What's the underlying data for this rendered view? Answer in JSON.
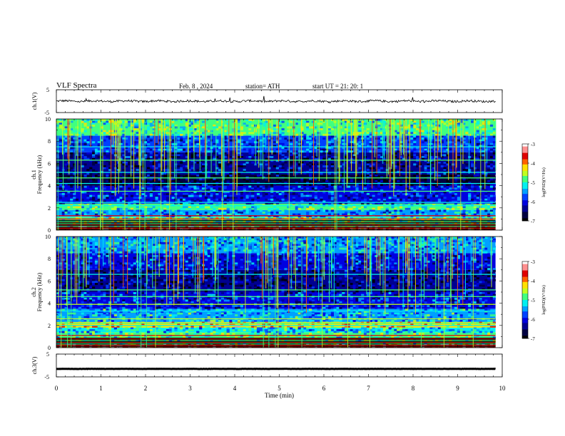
{
  "header": {
    "title": "VLF  Spectra",
    "date": "Feb. 8  , 2024",
    "station": "station= ATH",
    "start": "start  UT  =    21: 20: 1"
  },
  "colormap": [
    "#000000",
    "#000040",
    "#000090",
    "#0000e0",
    "#0040ff",
    "#00a0ff",
    "#00f0f0",
    "#40ff80",
    "#c0ff20",
    "#ffe000",
    "#ff6000",
    "#e00000",
    "#ff9090",
    "#ffffff"
  ],
  "chart_data": [
    {
      "type": "line",
      "name": "ch.1 waveform",
      "ylabel": "ch.1(V)",
      "ylim": [
        -5,
        5
      ],
      "yticks": [
        "5",
        "-5"
      ],
      "xlim": [
        0,
        10
      ],
      "baseline": 0,
      "amplitude_typical": 0.8
    },
    {
      "type": "heatmap",
      "name": "ch.1 spectrogram",
      "ylabel": "ch.1\nFrequency  (kHz)",
      "xlim": [
        0,
        10
      ],
      "ylim": [
        0,
        10
      ],
      "data_xmax": 9.85,
      "yticks": [
        "10",
        "8",
        "6",
        "4",
        "2",
        "0"
      ],
      "colorbar": {
        "label": "log(PSD)(V²/Hz)",
        "range": [
          -7,
          -3
        ],
        "ticks": [
          "-3",
          "-4",
          "-5",
          "-6",
          "-7"
        ]
      },
      "bands": [
        {
          "f": [
            0,
            0.3
          ],
          "level": -3.5
        },
        {
          "f": [
            0.3,
            1.2
          ],
          "level": -4.8
        },
        {
          "f": [
            1.2,
            1.8
          ],
          "level": -5.6
        },
        {
          "f": [
            1.8,
            2.4
          ],
          "level": -4.9
        },
        {
          "f": [
            2.4,
            4.0
          ],
          "level": -6.0
        },
        {
          "f": [
            4.0,
            5.0
          ],
          "level": -6.6
        },
        {
          "f": [
            5.0,
            7.0
          ],
          "level": -6.3
        },
        {
          "f": [
            7.0,
            8.5
          ],
          "level": -5.8
        },
        {
          "f": [
            8.5,
            10.0
          ],
          "level": -5.0
        }
      ],
      "strong_lines_khz": [
        0.2,
        0.45,
        0.7,
        1.0,
        1.3,
        2.2,
        2.5,
        3.5,
        4.2,
        4.7,
        5.2,
        6.3,
        7.5
      ]
    },
    {
      "type": "heatmap",
      "name": "ch.2 spectrogram",
      "ylabel": "ch.2\nFrequency  (kHz)",
      "xlim": [
        0,
        10
      ],
      "ylim": [
        0,
        10
      ],
      "data_xmax": 9.85,
      "yticks": [
        "10",
        "8",
        "6",
        "4",
        "2",
        "0"
      ],
      "colorbar": {
        "label": "log(PSD)(V²/Hz)",
        "range": [
          -7,
          -3
        ],
        "ticks": [
          "-3",
          "-4",
          "-5",
          "-6",
          "-7"
        ]
      },
      "bands": [
        {
          "f": [
            0,
            0.3
          ],
          "level": -3.5
        },
        {
          "f": [
            0.3,
            1.4
          ],
          "level": -4.9
        },
        {
          "f": [
            1.4,
            1.8
          ],
          "level": -5.3
        },
        {
          "f": [
            1.8,
            2.3
          ],
          "level": -4.2
        },
        {
          "f": [
            2.3,
            3.5
          ],
          "level": -5.4
        },
        {
          "f": [
            3.5,
            5.0
          ],
          "level": -6.0
        },
        {
          "f": [
            5.0,
            7.0
          ],
          "level": -6.4
        },
        {
          "f": [
            7.0,
            8.5
          ],
          "level": -6.0
        },
        {
          "f": [
            8.5,
            10.0
          ],
          "level": -5.5
        }
      ],
      "strong_lines_khz": [
        0.2,
        0.5,
        0.8,
        1.1,
        2.0,
        2.2,
        2.6,
        3.3,
        3.9,
        4.6,
        5.2,
        6.6
      ]
    },
    {
      "type": "line",
      "name": "ch.3 waveform",
      "ylabel": "ch.3(V)",
      "ylim": [
        -5,
        5
      ],
      "yticks": [
        "5",
        "-5"
      ],
      "xlim": [
        0,
        10
      ],
      "baseline": -1.5,
      "amplitude_typical": 0.1
    }
  ],
  "xaxis": {
    "label": "Time  (min)",
    "ticks": [
      "0",
      "1",
      "2",
      "3",
      "4",
      "5",
      "6",
      "7",
      "8",
      "9",
      "10"
    ]
  }
}
